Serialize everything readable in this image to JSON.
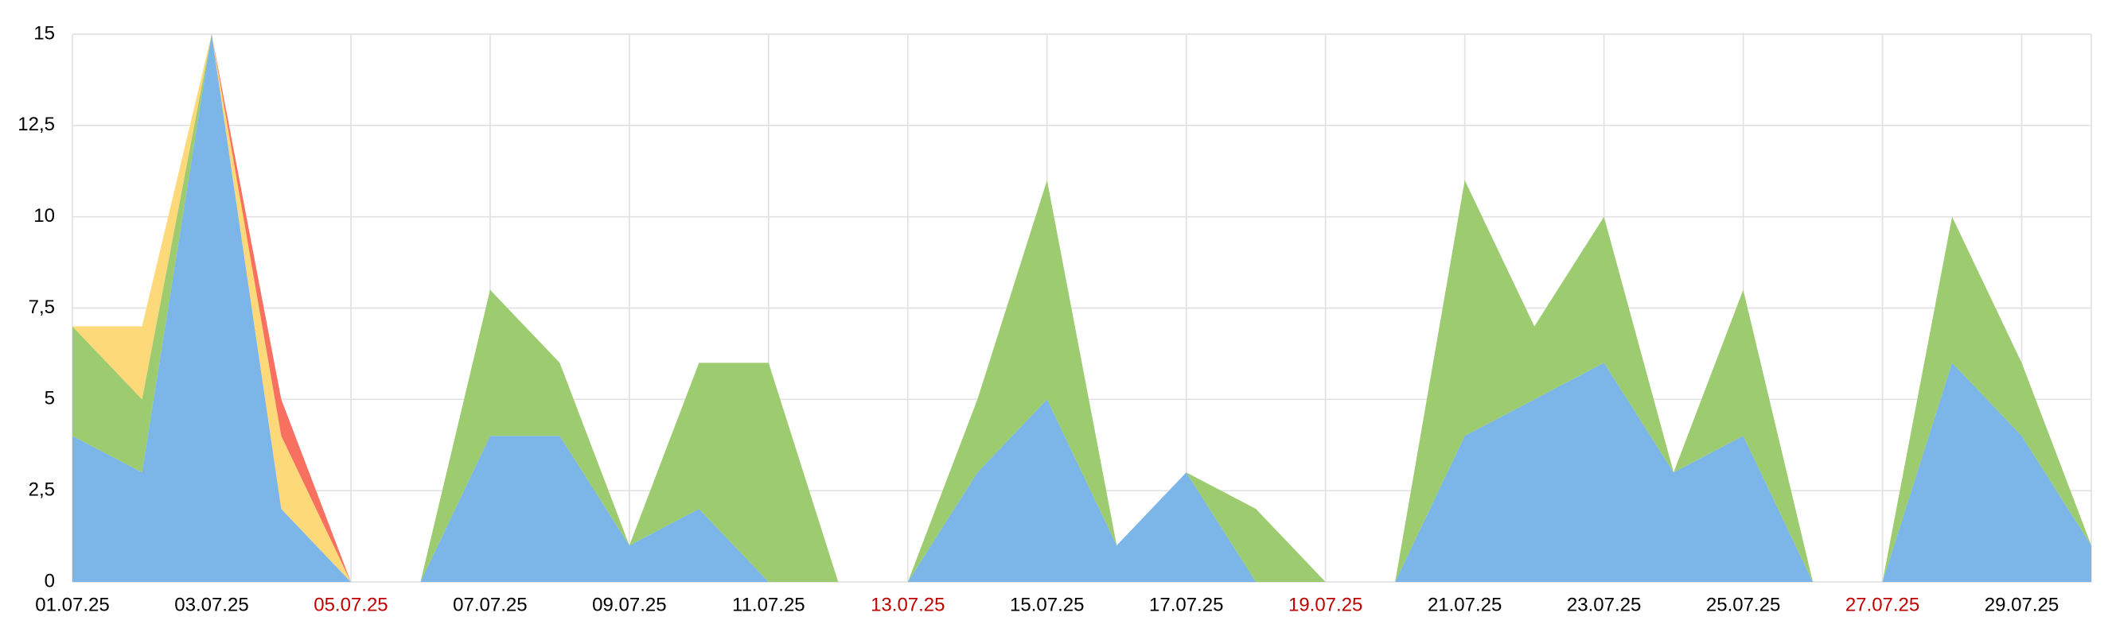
{
  "chart_data": {
    "type": "stacked_area",
    "categories": [
      "01.07.25",
      null,
      "03.07.25",
      null,
      "05.07.25",
      null,
      "07.07.25",
      null,
      "09.07.25",
      null,
      "11.07.25",
      null,
      "13.07.25",
      null,
      "15.07.25",
      null,
      "17.07.25",
      null,
      "19.07.25",
      null,
      "21.07.25",
      null,
      "23.07.25",
      null,
      "25.07.25",
      null,
      "27.07.25",
      null,
      "29.07.25",
      null
    ],
    "category_label_colors": [
      "#000000",
      null,
      "#000000",
      null,
      "#c00000",
      null,
      "#000000",
      null,
      "#000000",
      null,
      "#000000",
      null,
      "#c00000",
      null,
      "#000000",
      null,
      "#000000",
      null,
      "#c00000",
      null,
      "#000000",
      null,
      "#000000",
      null,
      "#000000",
      null,
      "#c00000",
      null,
      "#000000",
      null
    ],
    "series": [
      {
        "color": "#7cb5e8",
        "values": [
          4,
          3,
          15,
          2,
          0,
          0,
          4,
          4,
          1,
          2,
          0,
          0,
          0,
          3,
          5,
          1,
          3,
          0,
          0,
          0,
          4,
          5,
          6,
          3,
          4,
          0,
          0,
          6,
          4,
          1
        ]
      },
      {
        "color": "#9ccc6f",
        "values": [
          3,
          2,
          0,
          0,
          0,
          0,
          4,
          2,
          0,
          4,
          6,
          0,
          0,
          2,
          6,
          0,
          0,
          2,
          0,
          0,
          7,
          2,
          4,
          0,
          4,
          0,
          0,
          4,
          2,
          0
        ]
      },
      {
        "color": "#fdd97a",
        "values": [
          0,
          2,
          0,
          2,
          0,
          0,
          0,
          0,
          0,
          0,
          0,
          0,
          0,
          0,
          0,
          0,
          0,
          0,
          0,
          0,
          0,
          0,
          0,
          0,
          0,
          0,
          0,
          0,
          0,
          0
        ]
      },
      {
        "color": "#f87060",
        "values": [
          0,
          0,
          0,
          1,
          0,
          0,
          0,
          0,
          0,
          0,
          0,
          0,
          0,
          0,
          0,
          0,
          0,
          0,
          0,
          0,
          0,
          0,
          0,
          0,
          0,
          0,
          0,
          0,
          0,
          0
        ]
      }
    ],
    "ylim": [
      0,
      15
    ],
    "yticks": [
      0,
      {
        "value": 2.5,
        "label": "2,5"
      },
      5,
      {
        "value": 7.5,
        "label": "7,5"
      },
      10,
      {
        "value": 12.5,
        "label": "12,5"
      },
      15
    ],
    "grid": true
  }
}
